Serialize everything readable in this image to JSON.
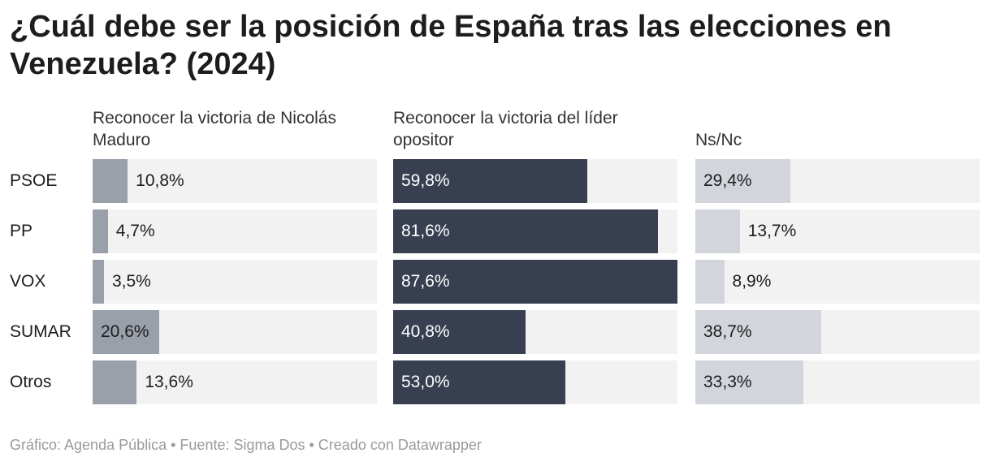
{
  "chart_data": {
    "type": "bar",
    "title": "¿Cuál debe ser la posición de España tras las elecciones en Venezuela? (2024)",
    "categories": [
      "PSOE",
      "PP",
      "VOX",
      "SUMAR",
      "Otros"
    ],
    "series": [
      {
        "name": "Reconocer la victoria de Nicolás Maduro",
        "values": [
          10.8,
          4.7,
          3.5,
          20.6,
          13.6
        ],
        "labels": [
          "10,8%",
          "4,7%",
          "3,5%",
          "20,6%",
          "13,6%"
        ],
        "color": "#9aa0aa"
      },
      {
        "name": "Reconocer la victoria del líder opositor",
        "values": [
          59.8,
          81.6,
          87.6,
          40.8,
          53.0
        ],
        "labels": [
          "59,8%",
          "81,6%",
          "87,6%",
          "40,8%",
          "53,0%"
        ],
        "color": "#383f50"
      },
      {
        "name": "Ns/Nc",
        "values": [
          29.4,
          13.7,
          8.9,
          38.7,
          33.3
        ],
        "labels": [
          "29,4%",
          "13,7%",
          "8,9%",
          "38,7%",
          "33,3%"
        ],
        "color": "#d2d5dc"
      }
    ],
    "xlim": [
      0,
      87.6
    ],
    "track_color": "#f2f2f2"
  },
  "footer": "Gráfico: Agenda Pública • Fuente: Sigma Dos • Creado con Datawrapper"
}
